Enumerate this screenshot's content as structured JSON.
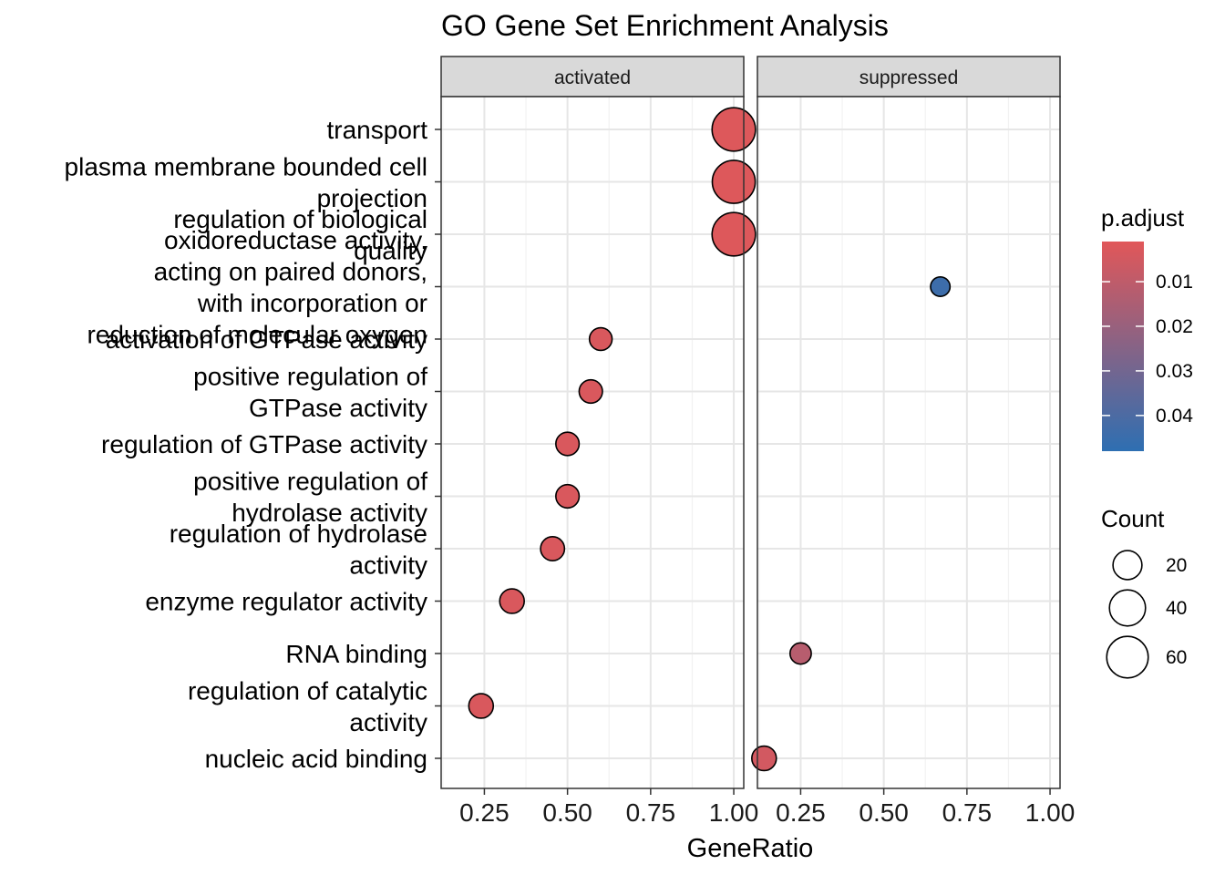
{
  "chart_data": {
    "type": "scatter",
    "title": "GO Gene Set Enrichment Analysis",
    "xlabel": "GeneRatio",
    "ylabel": "",
    "xlim": [
      0.12,
      1.03
    ],
    "x_ticks": [
      0.25,
      0.5,
      0.75,
      1.0
    ],
    "x_tick_labels": [
      "0.25",
      "0.50",
      "0.75",
      "1.00"
    ],
    "grid": true,
    "facets": [
      "activated",
      "suppressed"
    ],
    "categories": [
      "transport",
      "plasma membrane bounded cell projection",
      "regulation of biological quality",
      "oxidoreductase activity, acting on paired donors, with incorporation or reduction of molecular oxygen",
      "activation of GTPase activity",
      "positive regulation of GTPase activity",
      "regulation of GTPase activity",
      "positive regulation of hydrolase activity",
      "regulation of hydrolase activity",
      "enzyme regulator activity",
      "RNA binding",
      "regulation of catalytic activity",
      "nucleic acid binding"
    ],
    "category_labels": [
      [
        "transport"
      ],
      [
        "plasma membrane bounded cell",
        "projection"
      ],
      [
        "regulation of biological",
        "quality"
      ],
      [
        "oxidoreductase activity,",
        "acting on paired donors,",
        "with incorporation or",
        "reduction of molecular oxygen"
      ],
      [
        "activation of GTPase activity"
      ],
      [
        "positive regulation of",
        "GTPase activity"
      ],
      [
        "regulation of GTPase activity"
      ],
      [
        "positive regulation of",
        "hydrolase activity"
      ],
      [
        "regulation of hydrolase",
        "activity"
      ],
      [
        "enzyme regulator activity"
      ],
      [
        "RNA binding"
      ],
      [
        "regulation of catalytic",
        "activity"
      ],
      [
        "nucleic acid binding"
      ]
    ],
    "points": [
      {
        "facet": "activated",
        "category": "transport",
        "x": 1.0,
        "count": 68,
        "p_adjust": 0.002
      },
      {
        "facet": "activated",
        "category": "plasma membrane bounded cell projection",
        "x": 1.0,
        "count": 66,
        "p_adjust": 0.002
      },
      {
        "facet": "activated",
        "category": "regulation of biological quality",
        "x": 1.0,
        "count": 68,
        "p_adjust": 0.002
      },
      {
        "facet": "suppressed",
        "category": "oxidoreductase activity, acting on paired donors, with incorporation or reduction of molecular oxygen",
        "x": 0.67,
        "count": 4,
        "p_adjust": 0.044
      },
      {
        "facet": "activated",
        "category": "activation of GTPase activity",
        "x": 0.6,
        "count": 8,
        "p_adjust": 0.003
      },
      {
        "facet": "activated",
        "category": "positive regulation of GTPase activity",
        "x": 0.57,
        "count": 9,
        "p_adjust": 0.003
      },
      {
        "facet": "activated",
        "category": "regulation of GTPase activity",
        "x": 0.5,
        "count": 9,
        "p_adjust": 0.003
      },
      {
        "facet": "activated",
        "category": "positive regulation of hydrolase activity",
        "x": 0.5,
        "count": 9,
        "p_adjust": 0.003
      },
      {
        "facet": "activated",
        "category": "regulation of hydrolase activity",
        "x": 0.455,
        "count": 10,
        "p_adjust": 0.003
      },
      {
        "facet": "activated",
        "category": "enzyme regulator activity",
        "x": 0.333,
        "count": 11,
        "p_adjust": 0.003
      },
      {
        "facet": "suppressed",
        "category": "RNA binding",
        "x": 0.25,
        "count": 6,
        "p_adjust": 0.012
      },
      {
        "facet": "activated",
        "category": "regulation of catalytic activity",
        "x": 0.24,
        "count": 11,
        "p_adjust": 0.003
      },
      {
        "facet": "suppressed",
        "category": "nucleic acid binding",
        "x": 0.14,
        "count": 11,
        "p_adjust": 0.005
      }
    ],
    "legend_color": {
      "title": "p.adjust",
      "range": [
        0.001,
        0.048
      ],
      "breaks": [
        0.01,
        0.02,
        0.03,
        0.04
      ],
      "break_labels": [
        "0.01",
        "0.02",
        "0.03",
        "0.04"
      ],
      "low_color": "#E15759",
      "high_color": "#2E6FB2",
      "placement": "right"
    },
    "legend_size": {
      "title": "Count",
      "breaks": [
        20,
        40,
        60
      ],
      "break_labels": [
        "20",
        "40",
        "60"
      ],
      "placement": "right"
    }
  }
}
